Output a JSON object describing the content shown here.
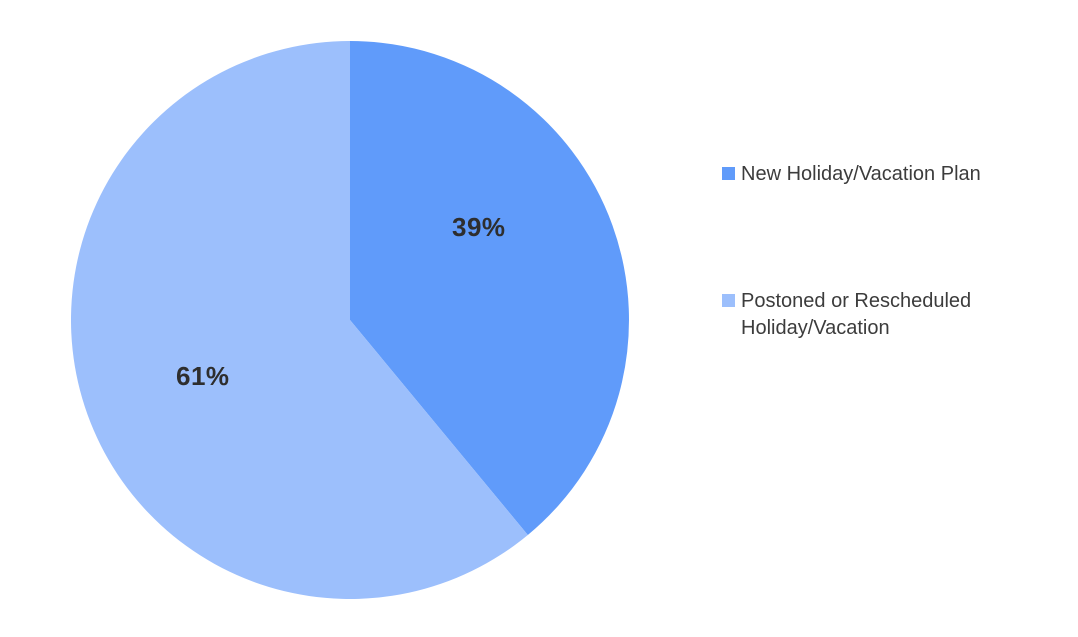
{
  "chart_data": {
    "type": "pie",
    "title": "",
    "legend_position": "right",
    "direction": "clockwise",
    "start_angle_deg": 0,
    "background_color": "#FFFFFF",
    "value_label_color": "#2E2E2E",
    "legend_text_color": "#3C3C3C",
    "slices": [
      {
        "label": "New Holiday/Vacation Plan",
        "value": 39,
        "display": "39%",
        "color": "#609BFA"
      },
      {
        "label": "Postoned or Rescheduled Holiday/Vacation",
        "value": 61,
        "display": "61%",
        "color": "#9CBFFC"
      }
    ]
  }
}
